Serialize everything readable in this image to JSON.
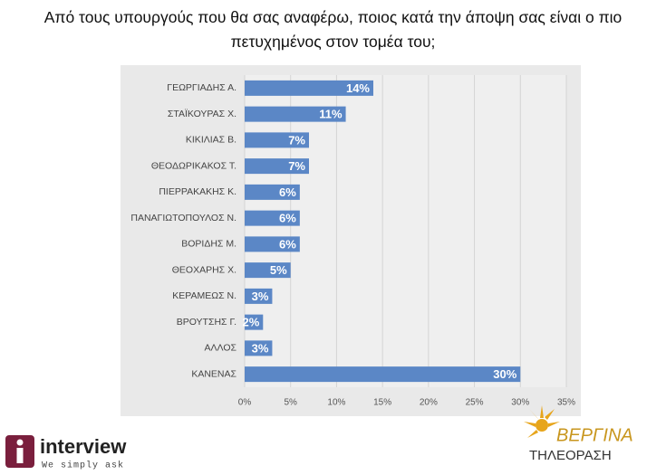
{
  "chart_data": {
    "type": "bar",
    "orientation": "horizontal",
    "title": "Από τους υπουργούς που θα σας αναφέρω, ποιος κατά την άποψη σας είναι ο πιο πετυχημένος στον τομέα του;",
    "categories": [
      "ΓΕΩΡΓΙΑΔΗΣ Α.",
      "ΣΤΑΪΚΟΥΡΑΣ Χ.",
      "ΚΙΚΙΛΙΑΣ Β.",
      "ΘΕΟΔΩΡΙΚΑΚΟΣ Τ.",
      "ΠΙΕΡΡΑΚΑΚΗΣ Κ.",
      "ΠΑΝΑΓΙΩΤΟΠΟΥΛΟΣ Ν.",
      "ΒΟΡΙΔΗΣ Μ.",
      "ΘΕΟΧΑΡΗΣ Χ.",
      "ΚΕΡΑΜΕΩΣ Ν.",
      "ΒΡΟΥΤΣΗΣ Γ.",
      "ΑΛΛΟΣ",
      "ΚΑΝΕΝΑΣ"
    ],
    "values": [
      14,
      11,
      7,
      7,
      6,
      6,
      6,
      5,
      3,
      2,
      3,
      30
    ],
    "value_labels": [
      "14%",
      "11%",
      "7%",
      "7%",
      "6%",
      "6%",
      "6%",
      "5%",
      "3%",
      "2%",
      "3%",
      "30%"
    ],
    "color": "#5b87c6",
    "xlim": [
      0,
      35
    ],
    "xticks": [
      {
        "value": 0,
        "label": "0%"
      },
      {
        "value": 5,
        "label": "5%"
      },
      {
        "value": 10,
        "label": "10%"
      },
      {
        "value": 15,
        "label": "15%"
      },
      {
        "value": 20,
        "label": "20%"
      },
      {
        "value": 25,
        "label": "25%"
      },
      {
        "value": 30,
        "label": "30%"
      },
      {
        "value": 35,
        "label": "35%"
      }
    ],
    "grid": true
  },
  "logos": [
    {
      "name": "interview",
      "tagline": "We simply ask"
    },
    {
      "name": "ΒΕΡΓΙΝΑ",
      "tagline": "ΤΗΛΕΟΡΑΣΗ"
    }
  ]
}
